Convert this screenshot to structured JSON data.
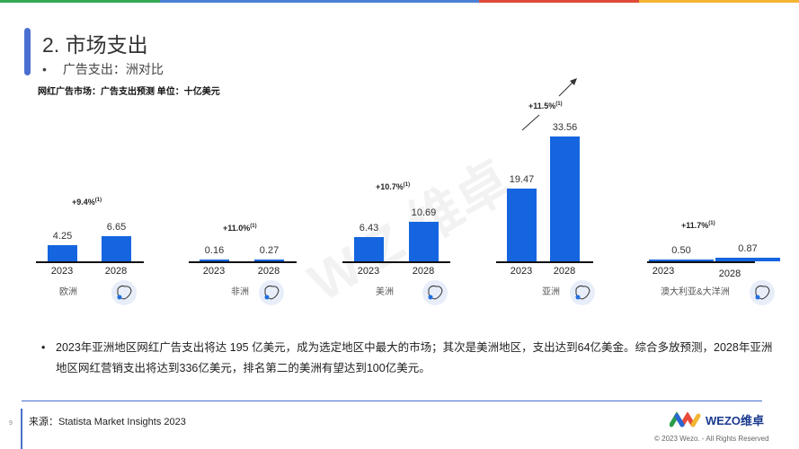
{
  "colors": {
    "bar": "#1565e0",
    "accent": "#4a6fd0",
    "topbar": [
      "#34a853",
      "#4a7fd4",
      "#4a7fd4",
      "#e04a3a",
      "#f2b632"
    ]
  },
  "header": {
    "title": "2. 市场支出",
    "bullet": "•",
    "subtitle": "广告支出：洲对比"
  },
  "chart_title": "网红广告市场：广告支出预测 单位：十亿美元",
  "chart_data": {
    "type": "bar",
    "categories": [
      "2023",
      "2028"
    ],
    "unit": "十亿美元",
    "groups": [
      {
        "region": "欧洲",
        "growth": "+9.4%",
        "footnote": "(1)",
        "values": [
          4.25,
          6.65
        ],
        "labels": [
          "4.25",
          "6.65"
        ],
        "icon": "europe-map-icon"
      },
      {
        "region": "非洲",
        "growth": "+11.0%",
        "footnote": "(1)",
        "values": [
          0.16,
          0.27
        ],
        "labels": [
          "0.16",
          "0.27"
        ],
        "icon": "africa-map-icon"
      },
      {
        "region": "美洲",
        "growth": "+10.7%",
        "footnote": "(1)",
        "values": [
          6.43,
          10.69
        ],
        "labels": [
          "6.43",
          "10.69"
        ],
        "icon": "americas-map-icon"
      },
      {
        "region": "亚洲",
        "growth": "+11.5%",
        "footnote": "(1)",
        "values": [
          19.47,
          33.56
        ],
        "labels": [
          "19.47",
          "33.56"
        ],
        "icon": "asia-map-icon"
      },
      {
        "region": "澳大利亚&大洋洲",
        "growth": "+11.7%",
        "footnote": "(1)",
        "values": [
          0.5,
          0.87
        ],
        "labels": [
          "0.50",
          "0.87"
        ],
        "icon": "oceania-map-icon"
      }
    ]
  },
  "note": "2023年亚洲地区网红广告支出将达 195 亿美元，成为选定地区中最大的市场；其次是美洲地区，支出达到64亿美金。综合多放预测，2028年亚洲地区网红营销支出将达到336亿美元，排名第二的美洲有望达到100亿美元。",
  "watermark": "WEZO维卓",
  "footer": {
    "page": "9",
    "source": "来源：Statista Market Insights 2023",
    "logo": "WEZO维卓",
    "copyright": "© 2023 Wezo. - All Rights Reserved"
  }
}
